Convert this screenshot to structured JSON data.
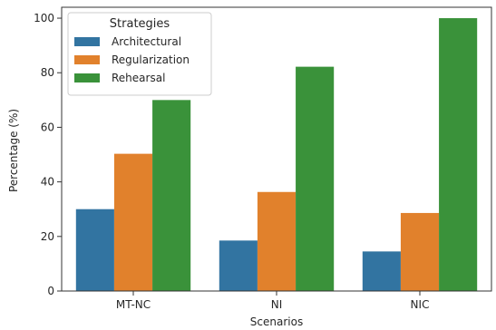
{
  "chart_data": {
    "type": "bar",
    "categories": [
      "MT-NC",
      "NI",
      "NIC"
    ],
    "series": [
      {
        "name": "Architectural",
        "values": [
          30,
          18.5,
          14.5
        ],
        "color": "#3274a1"
      },
      {
        "name": "Regularization",
        "values": [
          50.3,
          36.3,
          28.6
        ],
        "color": "#e1812c"
      },
      {
        "name": "Rehearsal",
        "values": [
          70,
          82.2,
          100
        ],
        "color": "#3a923a"
      }
    ],
    "title": "",
    "xlabel": "Scenarios",
    "ylabel": "Percentage (%)",
    "ylim": [
      0,
      104
    ],
    "yticks": [
      0,
      20,
      40,
      60,
      80,
      100
    ],
    "legend": {
      "title": "Strategies",
      "placement": "top-left"
    },
    "grid": false
  }
}
